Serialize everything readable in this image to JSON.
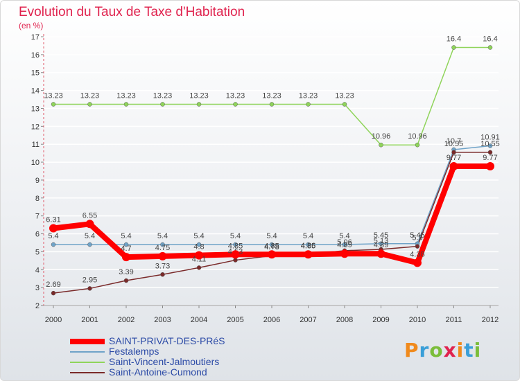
{
  "chart_data": {
    "type": "line",
    "title": "Evolution du Taux de Taxe d'Habitation",
    "subtitle": "(en %)",
    "xlabel": "",
    "ylabel": "",
    "ylim": [
      2,
      17
    ],
    "yticks": [
      2,
      3,
      4,
      5,
      6,
      7,
      8,
      9,
      10,
      11,
      12,
      13,
      14,
      15,
      16,
      17
    ],
    "ytick_labels": [
      "2",
      "3",
      "4",
      "5",
      "6",
      "7",
      "8",
      "9",
      "10",
      "11",
      "12",
      "13",
      "14",
      "15",
      "16",
      "17"
    ],
    "x": [
      "2000",
      "2001",
      "2002",
      "2003",
      "2004",
      "2005",
      "2006",
      "2007",
      "2008",
      "2009",
      "2010",
      "2011",
      "2012"
    ],
    "series": [
      {
        "name": "Saint-Vincent-Jalmoutiers",
        "color": "#8fd45a",
        "values": [
          13.23,
          13.23,
          13.23,
          13.23,
          13.23,
          13.23,
          13.23,
          13.23,
          13.23,
          10.96,
          10.96,
          16.4,
          16.4
        ],
        "labels": [
          "13.23",
          "13.23",
          "13.23",
          "13.23",
          "13.23",
          "13.23",
          "13.23",
          "13.23",
          "13.23",
          "10.96",
          "10.96",
          "16.4",
          "16.4"
        ]
      },
      {
        "name": "Festalemps",
        "color": "#6fa3c8",
        "values": [
          5.4,
          5.4,
          5.4,
          5.4,
          5.4,
          5.4,
          5.4,
          5.4,
          5.4,
          5.45,
          5.45,
          10.7,
          10.91
        ],
        "labels": [
          "5.4",
          "5.4",
          "5.4",
          "5.4",
          "5.4",
          "5.4",
          "5.4",
          "5.4",
          "5.4",
          "5.45",
          "5.45",
          "10.7",
          "10.91"
        ]
      },
      {
        "name": "Saint-Antoine-Cumond",
        "color": "#7a2a2a",
        "values": [
          2.69,
          2.95,
          3.39,
          3.73,
          4.11,
          4.53,
          4.78,
          4.86,
          5.06,
          5.13,
          5.3,
          10.55,
          10.55
        ],
        "labels": [
          "2.69",
          "2.95",
          "3.39",
          "3.73",
          "4.11",
          "4.53",
          "4.78",
          "4.86",
          "5.06",
          "5.13",
          "5.3",
          "10.55",
          "10.55"
        ]
      },
      {
        "name": "SAINT-PRIVAT-DES-PRéS",
        "color": "#ff0000",
        "values": [
          6.31,
          6.55,
          4.7,
          4.75,
          4.8,
          4.85,
          4.85,
          4.85,
          4.89,
          4.89,
          4.38,
          9.77,
          9.77
        ],
        "labels": [
          "6.31",
          "6.55",
          "4.7",
          "4.75",
          "4.8",
          "4.85",
          "4.85",
          "4.85",
          "4.89",
          "4.89",
          "4.38",
          "9.77",
          "9.77"
        ]
      }
    ],
    "legend_order": [
      "SAINT-PRIVAT-DES-PRéS",
      "Festalemps",
      "Saint-Vincent-Jalmoutiers",
      "Saint-Antoine-Cumond"
    ],
    "legend_position": "bottom-left"
  },
  "logo_text": "Proxiti"
}
